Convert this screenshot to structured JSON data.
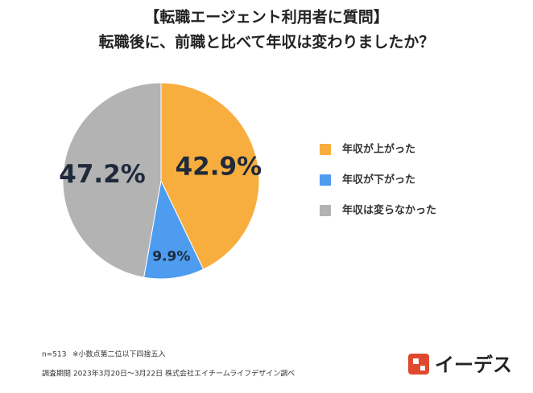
{
  "chart_data": {
    "type": "pie",
    "title": [
      "【転職エージェント利用者に質問】",
      "転職後に、前職と比べて年収は変わりましたか？"
    ],
    "categories": [
      "年収が上がった",
      "年収が下がった",
      "年収は変らなかった"
    ],
    "values": [
      42.9,
      9.9,
      47.2
    ],
    "value_labels": [
      "42.9%",
      "9.9%",
      "47.2%"
    ],
    "colors": [
      "#f8ae3f",
      "#4d9cf0",
      "#b3b3b3"
    ],
    "legend": "right",
    "notes": [
      "n=513",
      "※小数点第二位以下四捨五入",
      "調査期間 2023年3月20日〜3月22日 株式会社エイチームライフデザイン調べ"
    ],
    "logo": "イーデス"
  }
}
